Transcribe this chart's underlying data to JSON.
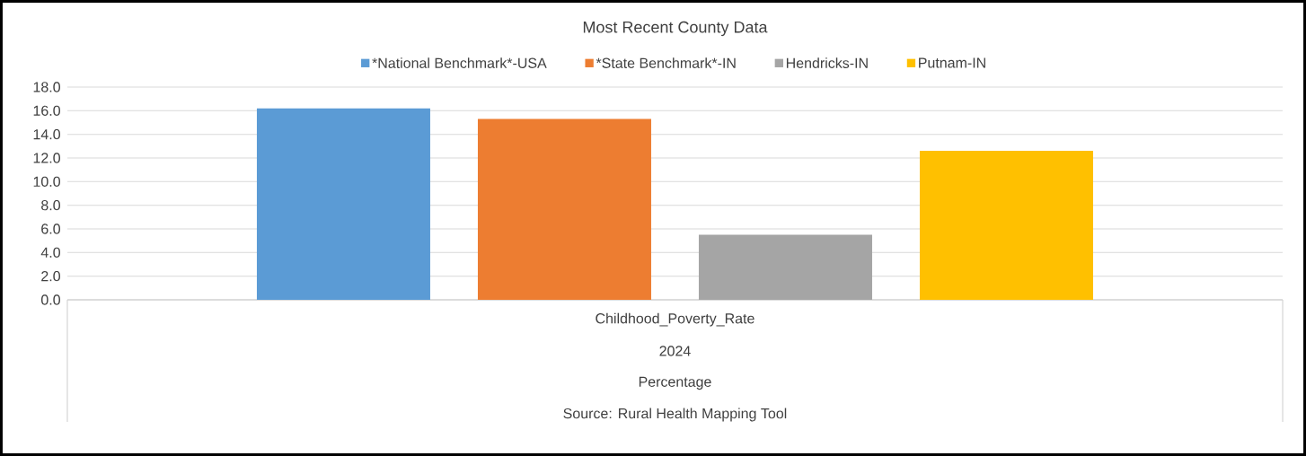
{
  "chart_data": {
    "type": "bar",
    "title": "Most Recent County Data",
    "categories": [
      "Childhood_Poverty_Rate"
    ],
    "series": [
      {
        "name": "*National Benchmark*-USA",
        "color": "#5b9bd5",
        "values": [
          16.2
        ]
      },
      {
        "name": "*State Benchmark*-IN",
        "color": "#ed7d31",
        "values": [
          15.3
        ]
      },
      {
        "name": "Hendricks-IN",
        "color": "#a5a5a5",
        "values": [
          5.5
        ]
      },
      {
        "name": "Putnam-IN",
        "color": "#ffc000",
        "values": [
          12.6
        ]
      }
    ],
    "ylim": [
      0,
      18
    ],
    "yticks": [
      {
        "value": 0,
        "label": "0.0"
      },
      {
        "value": 2,
        "label": "2.0"
      },
      {
        "value": 4,
        "label": "4.0"
      },
      {
        "value": 6,
        "label": "6.0"
      },
      {
        "value": 8,
        "label": "8.0"
      },
      {
        "value": 10,
        "label": "10.0"
      },
      {
        "value": 12,
        "label": "12.0"
      },
      {
        "value": 14,
        "label": "14.0"
      },
      {
        "value": 16,
        "label": "16.0"
      },
      {
        "value": 18,
        "label": "18.0"
      }
    ],
    "grid": "y",
    "legend": "top",
    "annotations": [
      "2024",
      "Percentage",
      "Source: Rural Health Mapping Tool"
    ]
  }
}
